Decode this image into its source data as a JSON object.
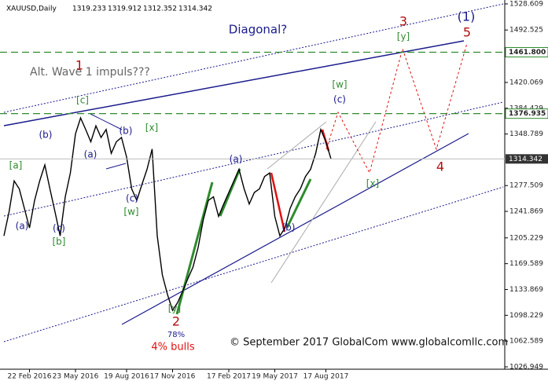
{
  "chart_data": {
    "type": "line",
    "symbol": "XAUUSD,Daily",
    "ohlc": [
      1319.233,
      1319.912,
      1312.352,
      1314.342
    ],
    "color": "#000000",
    "categories": [
      null,
      null,
      null,
      null,
      null,
      "22 Feb 2016",
      null,
      null,
      null,
      null,
      null,
      null,
      null,
      null,
      "23 May 2016",
      null,
      null,
      null,
      null,
      null,
      null,
      null,
      null,
      null,
      "19 Aug 2016",
      null,
      null,
      null,
      null,
      null,
      null,
      null,
      null,
      "17 Nov 2016",
      null,
      null,
      null,
      null,
      null,
      null,
      null,
      null,
      null,
      null,
      "17 Feb 2017",
      null,
      null,
      null,
      null,
      null,
      null,
      null,
      null,
      "19 May 2017",
      null,
      null,
      null,
      null,
      null,
      null,
      null,
      null,
      null,
      "17 Aug 2017",
      null
    ],
    "values": [
      1208,
      1241,
      1284,
      1273,
      1246,
      1219,
      1257,
      1284,
      1306,
      1273,
      1241,
      1208,
      1262,
      1295,
      1349,
      1371,
      1355,
      1338,
      1360,
      1344,
      1355,
      1322,
      1338,
      1344,
      1317,
      1273,
      1257,
      1279,
      1300,
      1328,
      1208,
      1154,
      1127,
      1105,
      1116,
      1132,
      1149,
      1165,
      1192,
      1230,
      1257,
      1262,
      1235,
      1252,
      1268,
      1284,
      1300,
      1273,
      1252,
      1268,
      1273,
      1290,
      1295,
      1235,
      1208,
      1219,
      1246,
      1262,
      1273,
      1290,
      1300,
      1322,
      1355,
      1338,
      1314.342
    ],
    "ylim": [
      1023.7,
      1534.0
    ],
    "yticks": [
      1528.609,
      1492.525,
      1420.069,
      1384.429,
      1348.789,
      1277.509,
      1241.869,
      1205.229,
      1169.589,
      1133.869,
      1098.229,
      1062.589,
      1026.949
    ],
    "levels": [
      {
        "value": 1461.8,
        "label": "1461.800",
        "color": "#2e8b2e"
      },
      {
        "value": 1376.935,
        "label": "1376.935",
        "color": "#2e8b2e"
      }
    ],
    "annotations": [
      {
        "text": "Diagonal?",
        "color": "#1a1a8c"
      },
      {
        "text": "Alt. Wave 1 impuls???",
        "color": "#666666"
      },
      {
        "text": "1",
        "color": "#b01010"
      },
      {
        "text": "[c]",
        "color": "#2e8b2e"
      },
      {
        "text": "(b)",
        "color": "#1a1a8c"
      },
      {
        "text": "[a]",
        "color": "#2e8b2e"
      },
      {
        "text": "(a)",
        "color": "#1a1a8c"
      },
      {
        "text": "(b)",
        "color": "#1a1a8c"
      },
      {
        "text": "[x]",
        "color": "#2e8b2e"
      },
      {
        "text": "(c)",
        "color": "#1a1a8c"
      },
      {
        "text": "[w]",
        "color": "#2e8b2e"
      },
      {
        "text": "(c)",
        "color": "#1a1a8c"
      },
      {
        "text": "[b]",
        "color": "#2e8b2e"
      },
      {
        "text": "(a)",
        "color": "#1a1a8c"
      },
      {
        "text": "[y]",
        "color": "#2e8b2e"
      },
      {
        "text": "2",
        "color": "#b01010"
      },
      {
        "text": "78%",
        "color": "#1a1a8c"
      },
      {
        "text": "4% bulls",
        "color": "#e01010"
      },
      {
        "text": "(a)",
        "color": "#1a1a8c"
      },
      {
        "text": "(b)",
        "color": "#1a1a8c"
      },
      {
        "text": "[w]",
        "color": "#2e8b2e"
      },
      {
        "text": "(c)",
        "color": "#1a1a8c"
      },
      {
        "text": "[x]",
        "color": "#2e8b2e"
      },
      {
        "text": "3",
        "color": "#b01010"
      },
      {
        "text": "[y]",
        "color": "#2e8b2e"
      },
      {
        "text": "(1)",
        "color": "#1a1a8c"
      },
      {
        "text": "5",
        "color": "#b01010"
      },
      {
        "text": "4",
        "color": "#b01010"
      },
      {
        "text": "© September 2017 GlobalCom www.globalcomllc.com",
        "color": "#111111"
      }
    ]
  }
}
